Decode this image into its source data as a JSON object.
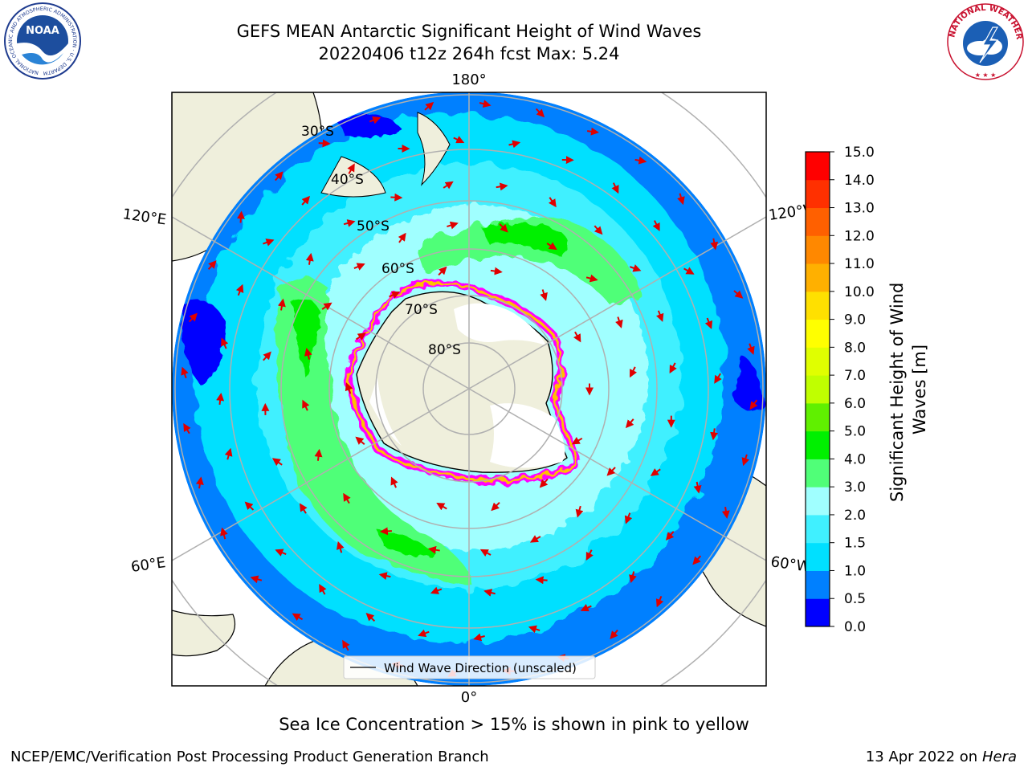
{
  "title": {
    "line1": "GEFS MEAN Antarctic Significant Height of Wind Waves",
    "line2": "20220406 t12z 264h fcst   Max: 5.24"
  },
  "map": {
    "projection": "south-polar-stereographic",
    "lon_labels": [
      "180°",
      "120°E",
      "120°W",
      "60°E",
      "60°W",
      "0°"
    ],
    "lat_labels": [
      "30°S",
      "40°S",
      "50°S",
      "60°S",
      "70°S",
      "80°S"
    ],
    "legend_label": "Wind Wave Direction (unscaled)",
    "arrow_color": "#e00000"
  },
  "colorbar": {
    "label": "Significant Height of Wind Waves [m]",
    "ticks": [
      "0.0",
      "0.5",
      "1.0",
      "1.5",
      "2.0",
      "3.0",
      "4.0",
      "5.0",
      "6.0",
      "7.0",
      "8.0",
      "9.0",
      "10.0",
      "11.0",
      "12.0",
      "13.0",
      "14.0",
      "15.0"
    ],
    "colors": [
      "#0000ff",
      "#0080ff",
      "#00e0ff",
      "#40f0ff",
      "#a0ffff",
      "#50ff78",
      "#00f000",
      "#60f000",
      "#c0ff00",
      "#e0ff00",
      "#ffff00",
      "#ffe000",
      "#ffb000",
      "#ff8800",
      "#ff6000",
      "#ff3000",
      "#ff0000"
    ]
  },
  "caption": "Sea Ice Concentration > 15% is shown in pink to yellow",
  "footer": {
    "left": "NCEP/EMC/Verification Post Processing Product Generation Branch",
    "right_prefix": "13 Apr 2022 on ",
    "right_host": "Hera"
  },
  "logos": {
    "noaa": "NOAA",
    "noaa_ring": "NATIONAL OCEANIC AND ATMOSPHERIC ADMINISTRATION · U.S. DEPARTMENT OF COMMERCE",
    "nws_ring": "NATIONAL WEATHER SERVICE"
  }
}
